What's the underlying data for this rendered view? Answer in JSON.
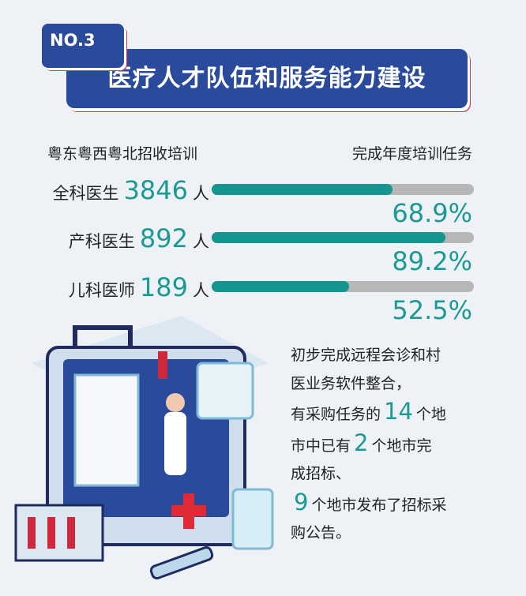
{
  "header": {
    "badge": "NO.3",
    "title": "医疗人才队伍和服务能力建设"
  },
  "chart_data": {
    "type": "bar",
    "left_header": "粤东粤西粤北招收培训",
    "right_header": "完成年度培训任务",
    "categories": [
      "全科医生",
      "产科医生",
      "儿科医师"
    ],
    "counts": [
      3846,
      892,
      189
    ],
    "unit": "人",
    "values": [
      68.9,
      89.2,
      52.5
    ],
    "value_labels": [
      "68.9%",
      "89.2%",
      "52.5%"
    ],
    "ylim": [
      0,
      100
    ],
    "colors": {
      "fill": "#15958f",
      "track": "#b7b7b7"
    }
  },
  "paragraph": [
    [
      {
        "t": "初步完成远程会诊和村"
      }
    ],
    [
      {
        "t": "医业务软件整合，"
      }
    ],
    [
      {
        "t": "有采购任务的"
      },
      {
        "t": "14",
        "hl": true
      },
      {
        "t": "个地"
      }
    ],
    [
      {
        "t": "市中已有"
      },
      {
        "t": "2",
        "hl": true
      },
      {
        "t": "个地市完"
      }
    ],
    [
      {
        "t": "成招标、"
      }
    ],
    [
      {
        "t": "9",
        "hl": true
      },
      {
        "t": "个地市发布了招标采"
      }
    ],
    [
      {
        "t": "购公告。"
      }
    ]
  ]
}
